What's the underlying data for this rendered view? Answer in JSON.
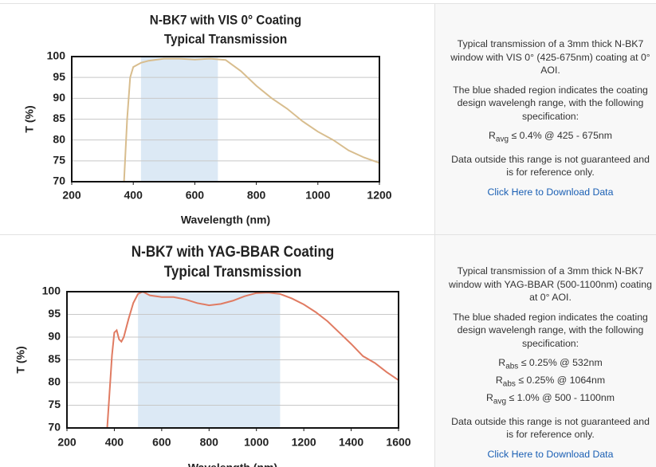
{
  "chart_data": [
    {
      "type": "line",
      "title": "N-BK7 with VIS 0° Coating",
      "subtitle": "Typical Transmission",
      "x_label": "Wavelength (nm)",
      "y_label": "T (%)",
      "color": "#d8bd8e",
      "shade_color": "#dce9f5",
      "shaded_range": [
        425,
        675
      ],
      "x": [
        370,
        380,
        390,
        400,
        425,
        450,
        500,
        550,
        600,
        650,
        700,
        750,
        800,
        850,
        900,
        950,
        1000,
        1050,
        1100,
        1150,
        1200
      ],
      "values": [
        70,
        85,
        95,
        97.5,
        98.5,
        99,
        99.5,
        99.5,
        99.3,
        99.5,
        99.2,
        96.5,
        93,
        90,
        87.5,
        84.5,
        82,
        80,
        77.5,
        75.8,
        74.5
      ],
      "xlim": [
        200,
        1200
      ],
      "ylim": [
        70,
        100
      ],
      "xticks": [
        200,
        400,
        600,
        800,
        1000,
        1200
      ],
      "yticks": [
        70,
        75,
        80,
        85,
        90,
        95,
        100
      ],
      "grid": true
    },
    {
      "type": "line",
      "title": "N-BK7 with YAG-BBAR Coating",
      "subtitle": "Typical Transmission",
      "x_label": "Wavelength (nm)",
      "y_label": "T (%)",
      "color": "#e07b62",
      "shade_color": "#dce9f5",
      "shaded_range": [
        500,
        1100
      ],
      "x": [
        370,
        380,
        390,
        400,
        410,
        420,
        430,
        440,
        460,
        480,
        500,
        520,
        550,
        600,
        650,
        700,
        750,
        800,
        850,
        900,
        950,
        1000,
        1050,
        1100,
        1150,
        1200,
        1250,
        1300,
        1350,
        1400,
        1450,
        1500,
        1550,
        1600
      ],
      "values": [
        70,
        78,
        86,
        91,
        91.5,
        89.5,
        89,
        90,
        94,
        97.5,
        99.5,
        100,
        99.2,
        98.8,
        98.8,
        98.3,
        97.5,
        97,
        97.3,
        98,
        99,
        99.7,
        99.8,
        99.5,
        98.5,
        97.2,
        95.5,
        93.5,
        91,
        88.5,
        85.8,
        84.3,
        82.3,
        80.5
      ],
      "xlim": [
        200,
        1600
      ],
      "ylim": [
        70,
        100
      ],
      "xticks": [
        200,
        400,
        600,
        800,
        1000,
        1200,
        1400,
        1600
      ],
      "yticks": [
        70,
        75,
        80,
        85,
        90,
        95,
        100
      ],
      "grid": true
    }
  ],
  "panels": [
    {
      "description": "Typical transmission of a 3mm thick N-BK7 window with VIS 0° (425-675nm) coating at 0° AOI.",
      "note": "The blue shaded region indicates the coating design wavelengh range, with the following specification:",
      "specs": [
        {
          "symbol": "R",
          "sub": "avg",
          "text": "≤ 0.4% @ 425 - 675nm"
        }
      ],
      "disclaimer": "Data outside this range is not guaranteed and is for reference only.",
      "link": "Click Here to Download Data"
    },
    {
      "description": "Typical transmission of a 3mm thick N-BK7 window with YAG-BBAR (500-1100nm) coating at 0° AOI.",
      "note": "The blue shaded region indicates the coating design wavelengh range, with the following specification:",
      "specs": [
        {
          "symbol": "R",
          "sub": "abs",
          "text": "≤ 0.25% @ 532nm"
        },
        {
          "symbol": "R",
          "sub": "abs",
          "text": "≤ 0.25% @ 1064nm"
        },
        {
          "symbol": "R",
          "sub": "avg",
          "text": "≤ 1.0% @ 500 - 1100nm"
        }
      ],
      "disclaimer": "Data outside this range is not guaranteed and is for reference only.",
      "link": "Click Here to Download Data"
    }
  ]
}
